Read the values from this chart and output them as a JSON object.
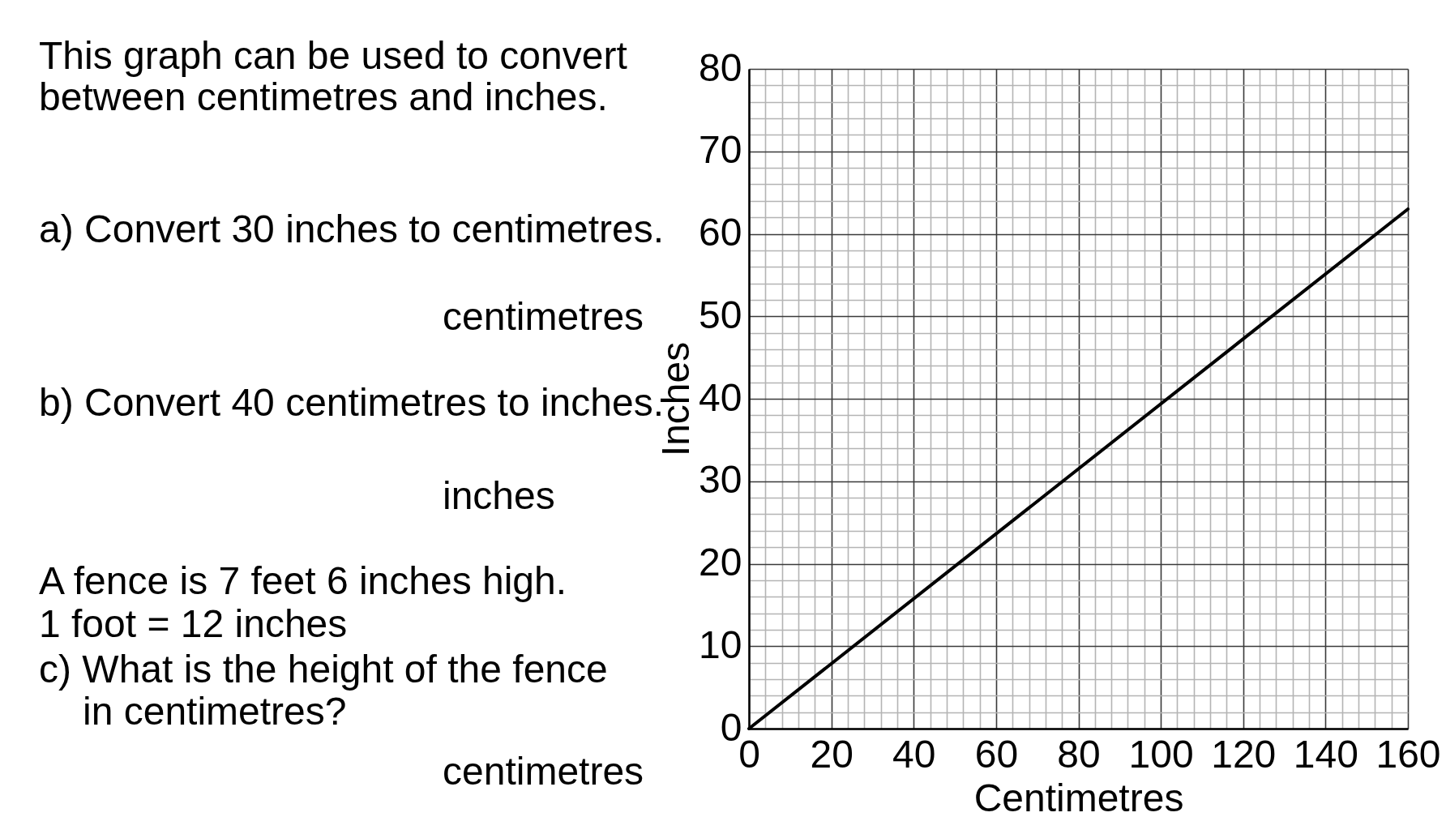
{
  "chart_data": {
    "type": "line",
    "xlabel": "Centimetres",
    "ylabel": "Inches",
    "annotations": [
      "This graph can be used to convert",
      "between centimetres and inches.",
      "a) Convert 30 inches to centimetres.",
      "centimetres",
      "b) Convert 40 centimetres to inches.",
      "inches",
      "A fence is 7 feet 6 inches high.",
      "1 foot = 12 inches",
      "c) What is the height of the fence",
      "in centimetres?",
      "centimetres"
    ],
    "series": [
      {
        "x": [
          0,
          160
        ],
        "values": [
          0,
          63
        ],
        "color": "#000000",
        "line_style": "solid"
      }
    ],
    "xlim": [
      0,
      160
    ],
    "ylim": [
      0,
      80
    ],
    "xticks": [
      0,
      20,
      40,
      60,
      80,
      100,
      120,
      140,
      160
    ],
    "yticks": [
      0,
      10,
      20,
      30,
      40,
      50,
      60,
      70,
      80
    ],
    "grid": true
  }
}
